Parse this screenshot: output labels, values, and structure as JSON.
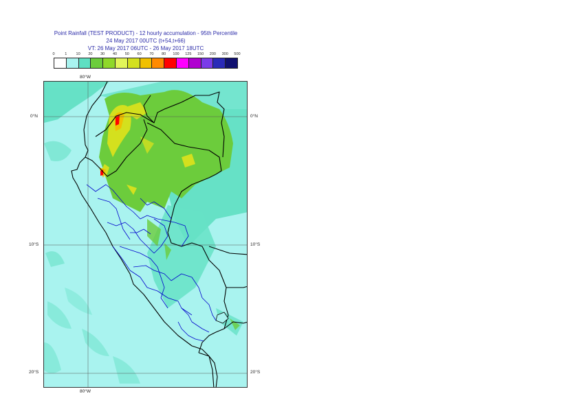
{
  "title": {
    "line1": "Point Rainfall (TEST PRODUCT) - 12 hourly accumulation - 95th Percentile",
    "line2": "24 May 2017 00UTC (t+54,t+66)",
    "line3": "VT: 26 May 2017 06UTC - 26 May 2017 18UTC"
  },
  "legend": {
    "labels": [
      "0",
      "1",
      "10",
      "20",
      "30",
      "40",
      "50",
      "60",
      "70",
      "80",
      "100",
      "125",
      "150",
      "200",
      "300",
      "500"
    ],
    "colors": [
      "#ffffff",
      "#a9f3ef",
      "#5fe0c2",
      "#6ccc3c",
      "#8fd82a",
      "#e2f55a",
      "#d4e01e",
      "#f0c000",
      "#ff8a00",
      "#ff0000",
      "#ff00ff",
      "#b000d0",
      "#7a3ce8",
      "#2a2ab8",
      "#101070"
    ]
  },
  "axes": {
    "lon_top": "80°W",
    "lon_bottom": "80°W",
    "lat_0_left": "0°N",
    "lat_0_right": "0°N",
    "lat_10_left": "10°S",
    "lat_10_right": "10°S",
    "lat_20_left": "20°S",
    "lat_20_right": "20°S"
  },
  "map": {
    "region": "Peru and surroundings",
    "lon_range_deg": [
      -82,
      -68
    ],
    "lat_range_deg": [
      -21,
      3
    ],
    "gridlines": {
      "lon": [
        -80
      ],
      "lat": [
        0,
        -10,
        -20
      ]
    }
  }
}
